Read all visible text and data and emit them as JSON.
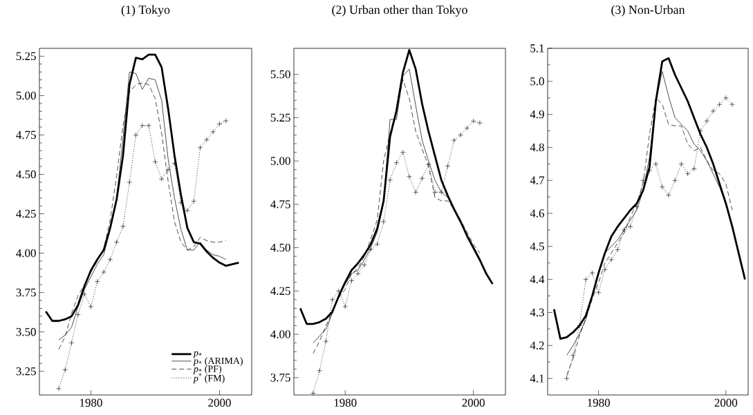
{
  "chart_data": [
    {
      "type": "line",
      "title": "(1) Tokyo",
      "xlim": [
        1972,
        2005
      ],
      "xticks": [
        1980,
        2000
      ],
      "ylim": [
        3.1,
        5.3
      ],
      "yticks": [
        {
          "value": 3.25,
          "label": "3.25"
        },
        {
          "value": 3.5,
          "label": "3.50"
        },
        {
          "value": 3.75,
          "label": "3.75"
        },
        {
          "value": 4,
          "label": "4.00"
        },
        {
          "value": 4.25,
          "label": "4.25"
        },
        {
          "value": 4.5,
          "label": "4.50"
        },
        {
          "value": 4.75,
          "label": "4.75"
        },
        {
          "value": 5,
          "label": "5.00"
        },
        {
          "value": 5.25,
          "label": "5.25"
        }
      ],
      "legend": "bottom right",
      "series": [
        {
          "name": "*p*$_{*}$",
          "color": "#000000",
          "line_style": "solid",
          "x": [
            1973,
            1974,
            1975,
            1976,
            1977,
            1978,
            1979,
            1980,
            1981,
            1982,
            1983,
            1984,
            1985,
            1986,
            1987,
            1988,
            1989,
            1990,
            1991,
            1992,
            1993,
            1994,
            1995,
            1996,
            1997,
            1998,
            1999,
            2000,
            2001,
            2002,
            2003
          ],
          "values": [
            3.63,
            3.57,
            3.57,
            3.58,
            3.6,
            3.67,
            3.79,
            3.89,
            3.96,
            4.02,
            4.16,
            4.34,
            4.62,
            5.07,
            5.24,
            5.23,
            5.26,
            5.26,
            5.18,
            4.92,
            4.62,
            4.37,
            4.16,
            4.07,
            4.06,
            4.01,
            3.97,
            3.94,
            3.92,
            3.93,
            3.94
          ]
        },
        {
          "name": "*p*$_{*}$ (ARIMA)",
          "color": "#000000",
          "line_style": "solid",
          "x": [
            1975,
            1976,
            1977,
            1978,
            1979,
            1980,
            1981,
            1982,
            1983,
            1984,
            1985,
            1986,
            1987,
            1988,
            1989,
            1990,
            1991,
            1992,
            1993,
            1994,
            1995,
            1996,
            1997,
            1998,
            1999,
            2000,
            2001
          ],
          "values": [
            3.45,
            3.48,
            3.53,
            3.66,
            3.77,
            3.85,
            3.93,
            3.99,
            4.15,
            4.35,
            4.73,
            5.15,
            5.14,
            5.04,
            5.11,
            5.1,
            4.97,
            4.6,
            4.35,
            4.15,
            4.02,
            4.02,
            4.07,
            4.02,
            3.99,
            3.98,
            3.96
          ]
        },
        {
          "name": "*p*$_{*}$ (PF)",
          "color": "#000000",
          "line_style": "dashed",
          "x": [
            1975,
            1976,
            1977,
            1978,
            1979,
            1980,
            1981,
            1982,
            1983,
            1984,
            1985,
            1986,
            1987,
            1988,
            1989,
            1990,
            1991,
            1992,
            1993,
            1994,
            1995,
            1996,
            1997,
            1998,
            1999,
            2000,
            2001
          ],
          "values": [
            3.39,
            3.47,
            3.62,
            3.73,
            3.8,
            3.88,
            3.95,
            4.03,
            4.21,
            4.49,
            4.81,
            5.02,
            5.07,
            5.08,
            5.07,
            4.98,
            4.76,
            4.46,
            4.2,
            4.07,
            4.02,
            4.04,
            4.1,
            4.08,
            4.07,
            4.07,
            4.08
          ]
        },
        {
          "name": "*p*$^{*}$ (FM)",
          "color": "#000000",
          "line_style": "dotted",
          "marker": "cross",
          "x": [
            1975,
            1976,
            1977,
            1978,
            1979,
            1980,
            1981,
            1982,
            1983,
            1984,
            1985,
            1986,
            1987,
            1988,
            1989,
            1990,
            1991,
            1992,
            1993,
            1994,
            1995,
            1996,
            1997,
            1998,
            1999,
            2000,
            2001
          ],
          "values": [
            3.14,
            3.26,
            3.43,
            3.61,
            3.74,
            3.66,
            3.82,
            3.88,
            3.96,
            4.07,
            4.17,
            4.45,
            4.75,
            4.81,
            4.81,
            4.58,
            4.47,
            4.53,
            4.57,
            4.32,
            4.27,
            4.33,
            4.67,
            4.72,
            4.77,
            4.82,
            4.84
          ]
        }
      ]
    },
    {
      "type": "line",
      "title": "(2) Urban other than Tokyo",
      "xlim": [
        1972,
        2005
      ],
      "xticks": [
        1980,
        2000
      ],
      "ylim": [
        3.65,
        5.65
      ],
      "yticks": [
        {
          "value": 3.75,
          "label": "3.75"
        },
        {
          "value": 4,
          "label": "4.00"
        },
        {
          "value": 4.25,
          "label": "4.25"
        },
        {
          "value": 4.5,
          "label": "4.50"
        },
        {
          "value": 4.75,
          "label": "4.75"
        },
        {
          "value": 5,
          "label": "5.00"
        },
        {
          "value": 5.25,
          "label": "5.25"
        },
        {
          "value": 5.5,
          "label": "5.50"
        }
      ],
      "series": [
        {
          "color": "#000000",
          "line_style": "solid",
          "x": [
            1973,
            1974,
            1975,
            1976,
            1977,
            1978,
            1979,
            1980,
            1981,
            1982,
            1983,
            1984,
            1985,
            1986,
            1987,
            1988,
            1989,
            1990,
            1991,
            1992,
            1993,
            1994,
            1995,
            1996,
            1997,
            1998,
            1999,
            2000,
            2001,
            2002,
            2003
          ],
          "values": [
            4.15,
            4.06,
            4.06,
            4.07,
            4.09,
            4.13,
            4.22,
            4.3,
            4.37,
            4.41,
            4.46,
            4.52,
            4.61,
            4.77,
            5.14,
            5.29,
            5.51,
            5.64,
            5.53,
            5.33,
            5.17,
            5.03,
            4.89,
            4.8,
            4.72,
            4.65,
            4.57,
            4.5,
            4.43,
            4.35,
            4.29
          ]
        },
        {
          "color": "#000000",
          "line_style": "solid",
          "x": [
            1975,
            1976,
            1977,
            1978,
            1979,
            1980,
            1981,
            1982,
            1983,
            1984,
            1985,
            1986,
            1987,
            1988,
            1989,
            1990,
            1991,
            1992,
            1993,
            1994,
            1995,
            1996,
            1997,
            1998,
            1999,
            2000,
            2001
          ],
          "values": [
            3.95,
            3.99,
            4.03,
            4.12,
            4.22,
            4.29,
            4.35,
            4.37,
            4.43,
            4.5,
            4.59,
            4.76,
            5.24,
            5.24,
            5.49,
            5.53,
            5.32,
            5.12,
            5.0,
            4.89,
            4.82,
            4.79,
            4.73,
            4.65,
            4.56,
            4.49,
            4.42
          ]
        },
        {
          "color": "#000000",
          "line_style": "dashed",
          "x": [
            1975,
            1976,
            1977,
            1978,
            1979,
            1980,
            1981,
            1982,
            1983,
            1984,
            1985,
            1986,
            1987,
            1988,
            1989,
            1990,
            1991,
            1992,
            1993,
            1994,
            1995,
            1996,
            1997,
            1998,
            1999,
            2000,
            2001
          ],
          "values": [
            3.89,
            3.96,
            4.05,
            4.13,
            4.21,
            4.26,
            4.35,
            4.38,
            4.45,
            4.55,
            4.66,
            5.0,
            5.16,
            5.29,
            5.47,
            5.36,
            5.17,
            5.07,
            4.97,
            4.79,
            4.77,
            4.77,
            4.72,
            4.66,
            4.59,
            4.52,
            4.47
          ]
        },
        {
          "color": "#000000",
          "line_style": "dotted",
          "marker": "cross",
          "x": [
            1975,
            1976,
            1977,
            1978,
            1979,
            1980,
            1981,
            1982,
            1983,
            1984,
            1985,
            1986,
            1987,
            1988,
            1989,
            1990,
            1991,
            1992,
            1993,
            1994,
            1995,
            1996,
            1997,
            1998,
            1999,
            2000,
            2001
          ],
          "values": [
            3.66,
            3.79,
            3.96,
            4.2,
            4.25,
            4.16,
            4.31,
            4.35,
            4.4,
            4.49,
            4.52,
            4.65,
            4.89,
            4.99,
            5.05,
            4.91,
            4.82,
            4.9,
            4.98,
            4.82,
            4.82,
            4.97,
            5.12,
            5.15,
            5.19,
            5.23,
            5.22
          ]
        }
      ]
    },
    {
      "type": "line",
      "title": "(3) Non-Urban",
      "xlim": [
        1972,
        2003.5
      ],
      "xticks": [
        1980,
        2000
      ],
      "ylim": [
        4.05,
        5.1
      ],
      "yticks": [
        4.1,
        4.2,
        4.3,
        4.4,
        4.5,
        4.6,
        4.7,
        4.8,
        4.9,
        {
          "value": 5,
          "label": "5.0"
        },
        5.1
      ],
      "series": [
        {
          "color": "#000000",
          "line_style": "solid",
          "x": [
            1973,
            1974,
            1975,
            1976,
            1977,
            1978,
            1979,
            1980,
            1981,
            1982,
            1983,
            1984,
            1985,
            1986,
            1987,
            1988,
            1989,
            1990,
            1991,
            1992,
            1993,
            1994,
            1995,
            1996,
            1997,
            1998,
            1999,
            2000,
            2001,
            2002,
            2003
          ],
          "values": [
            4.31,
            4.22,
            4.225,
            4.24,
            4.26,
            4.29,
            4.35,
            4.42,
            4.48,
            4.53,
            4.56,
            4.585,
            4.61,
            4.63,
            4.67,
            4.74,
            4.94,
            5.06,
            5.07,
            5.02,
            4.98,
            4.94,
            4.89,
            4.84,
            4.8,
            4.75,
            4.69,
            4.63,
            4.56,
            4.48,
            4.4
          ]
        },
        {
          "color": "#000000",
          "line_style": "solid",
          "x": [
            1975,
            1976,
            1977,
            1978,
            1979,
            1980,
            1981,
            1982,
            1983,
            1984,
            1985,
            1986,
            1987,
            1988,
            1989,
            1990,
            1991,
            1992,
            1993,
            1994,
            1995,
            1996,
            1997,
            1998,
            1999,
            2000
          ],
          "values": [
            4.17,
            4.2,
            4.235,
            4.28,
            4.35,
            4.42,
            4.48,
            4.5,
            4.52,
            4.55,
            4.58,
            4.61,
            4.67,
            4.77,
            4.94,
            5.03,
            4.955,
            4.89,
            4.87,
            4.85,
            4.81,
            4.79,
            4.76,
            4.72,
            4.68,
            4.63
          ]
        },
        {
          "color": "#000000",
          "line_style": "dashed",
          "x": [
            1975,
            1976,
            1977,
            1978,
            1979,
            1980,
            1981,
            1982,
            1983,
            1984,
            1985,
            1986,
            1987,
            1988,
            1989,
            1990,
            1991,
            1992,
            1993,
            1994,
            1995,
            1996,
            1997,
            1998,
            1999,
            2000,
            2001
          ],
          "values": [
            4.11,
            4.16,
            4.23,
            4.28,
            4.34,
            4.39,
            4.45,
            4.48,
            4.51,
            4.54,
            4.59,
            4.63,
            4.69,
            4.84,
            4.95,
            4.93,
            4.87,
            4.865,
            4.865,
            4.81,
            4.79,
            4.8,
            4.76,
            4.73,
            4.72,
            4.69,
            4.61
          ]
        },
        {
          "color": "#000000",
          "line_style": "dotted",
          "marker": "cross",
          "x": [
            1975,
            1976,
            1977,
            1978,
            1979,
            1980,
            1981,
            1982,
            1983,
            1984,
            1985,
            1986,
            1987,
            1988,
            1989,
            1990,
            1991,
            1992,
            1993,
            1994,
            1995,
            1996,
            1997,
            1998,
            1999,
            2000,
            2001
          ],
          "values": [
            4.1,
            4.17,
            4.26,
            4.4,
            4.42,
            4.36,
            4.43,
            4.46,
            4.49,
            4.55,
            4.56,
            4.62,
            4.7,
            4.73,
            4.75,
            4.68,
            4.655,
            4.7,
            4.75,
            4.72,
            4.735,
            4.85,
            4.88,
            4.91,
            4.93,
            4.95,
            4.93
          ]
        }
      ]
    }
  ]
}
